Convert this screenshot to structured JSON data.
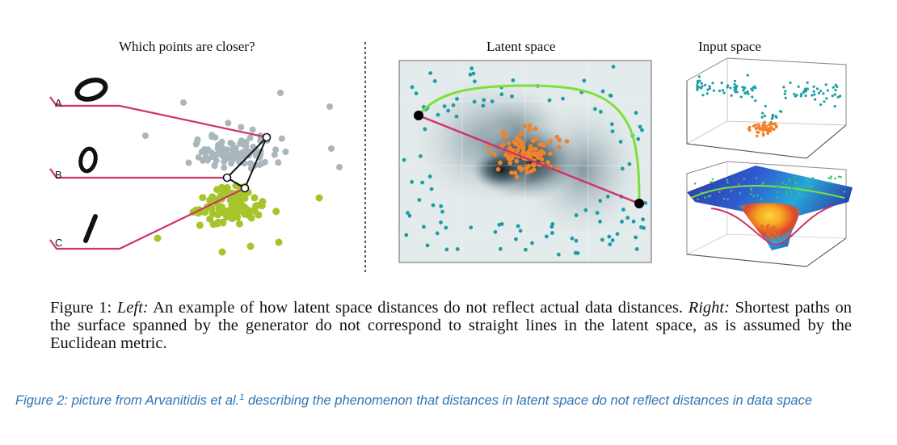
{
  "titles": {
    "left": "Which points are closer?",
    "middle": "Latent space",
    "right": "Input space"
  },
  "left_panel": {
    "labels": [
      "A",
      "B",
      "C"
    ],
    "colors": {
      "path": "#d0336b",
      "gray_cluster": "#a9b7bd",
      "green_cluster": "#a6c52a"
    }
  },
  "latent_panel": {
    "colors": {
      "outer_points": "#1a9ea6",
      "inner_points": "#f2832a",
      "geodesic": "#7ee03b",
      "straight": "#d0336b"
    }
  },
  "caption": {
    "prefix": "Figure 1: ",
    "left_label": "Left:",
    "left_text": " An example of how latent space distances do not reflect actual data distances. ",
    "right_label": "Right:",
    "right_text": " Shortest paths on the surface spanned by the generator do not correspond to straight lines in the latent space, as is assumed by the Euclidean metric."
  },
  "figure2": {
    "text_before": "Figure 2: picture from Arvanitidis et al.",
    "superscript": "1",
    "text_after": "  describing the phenomenon that distances in latent space do not reflect distances in data space"
  }
}
